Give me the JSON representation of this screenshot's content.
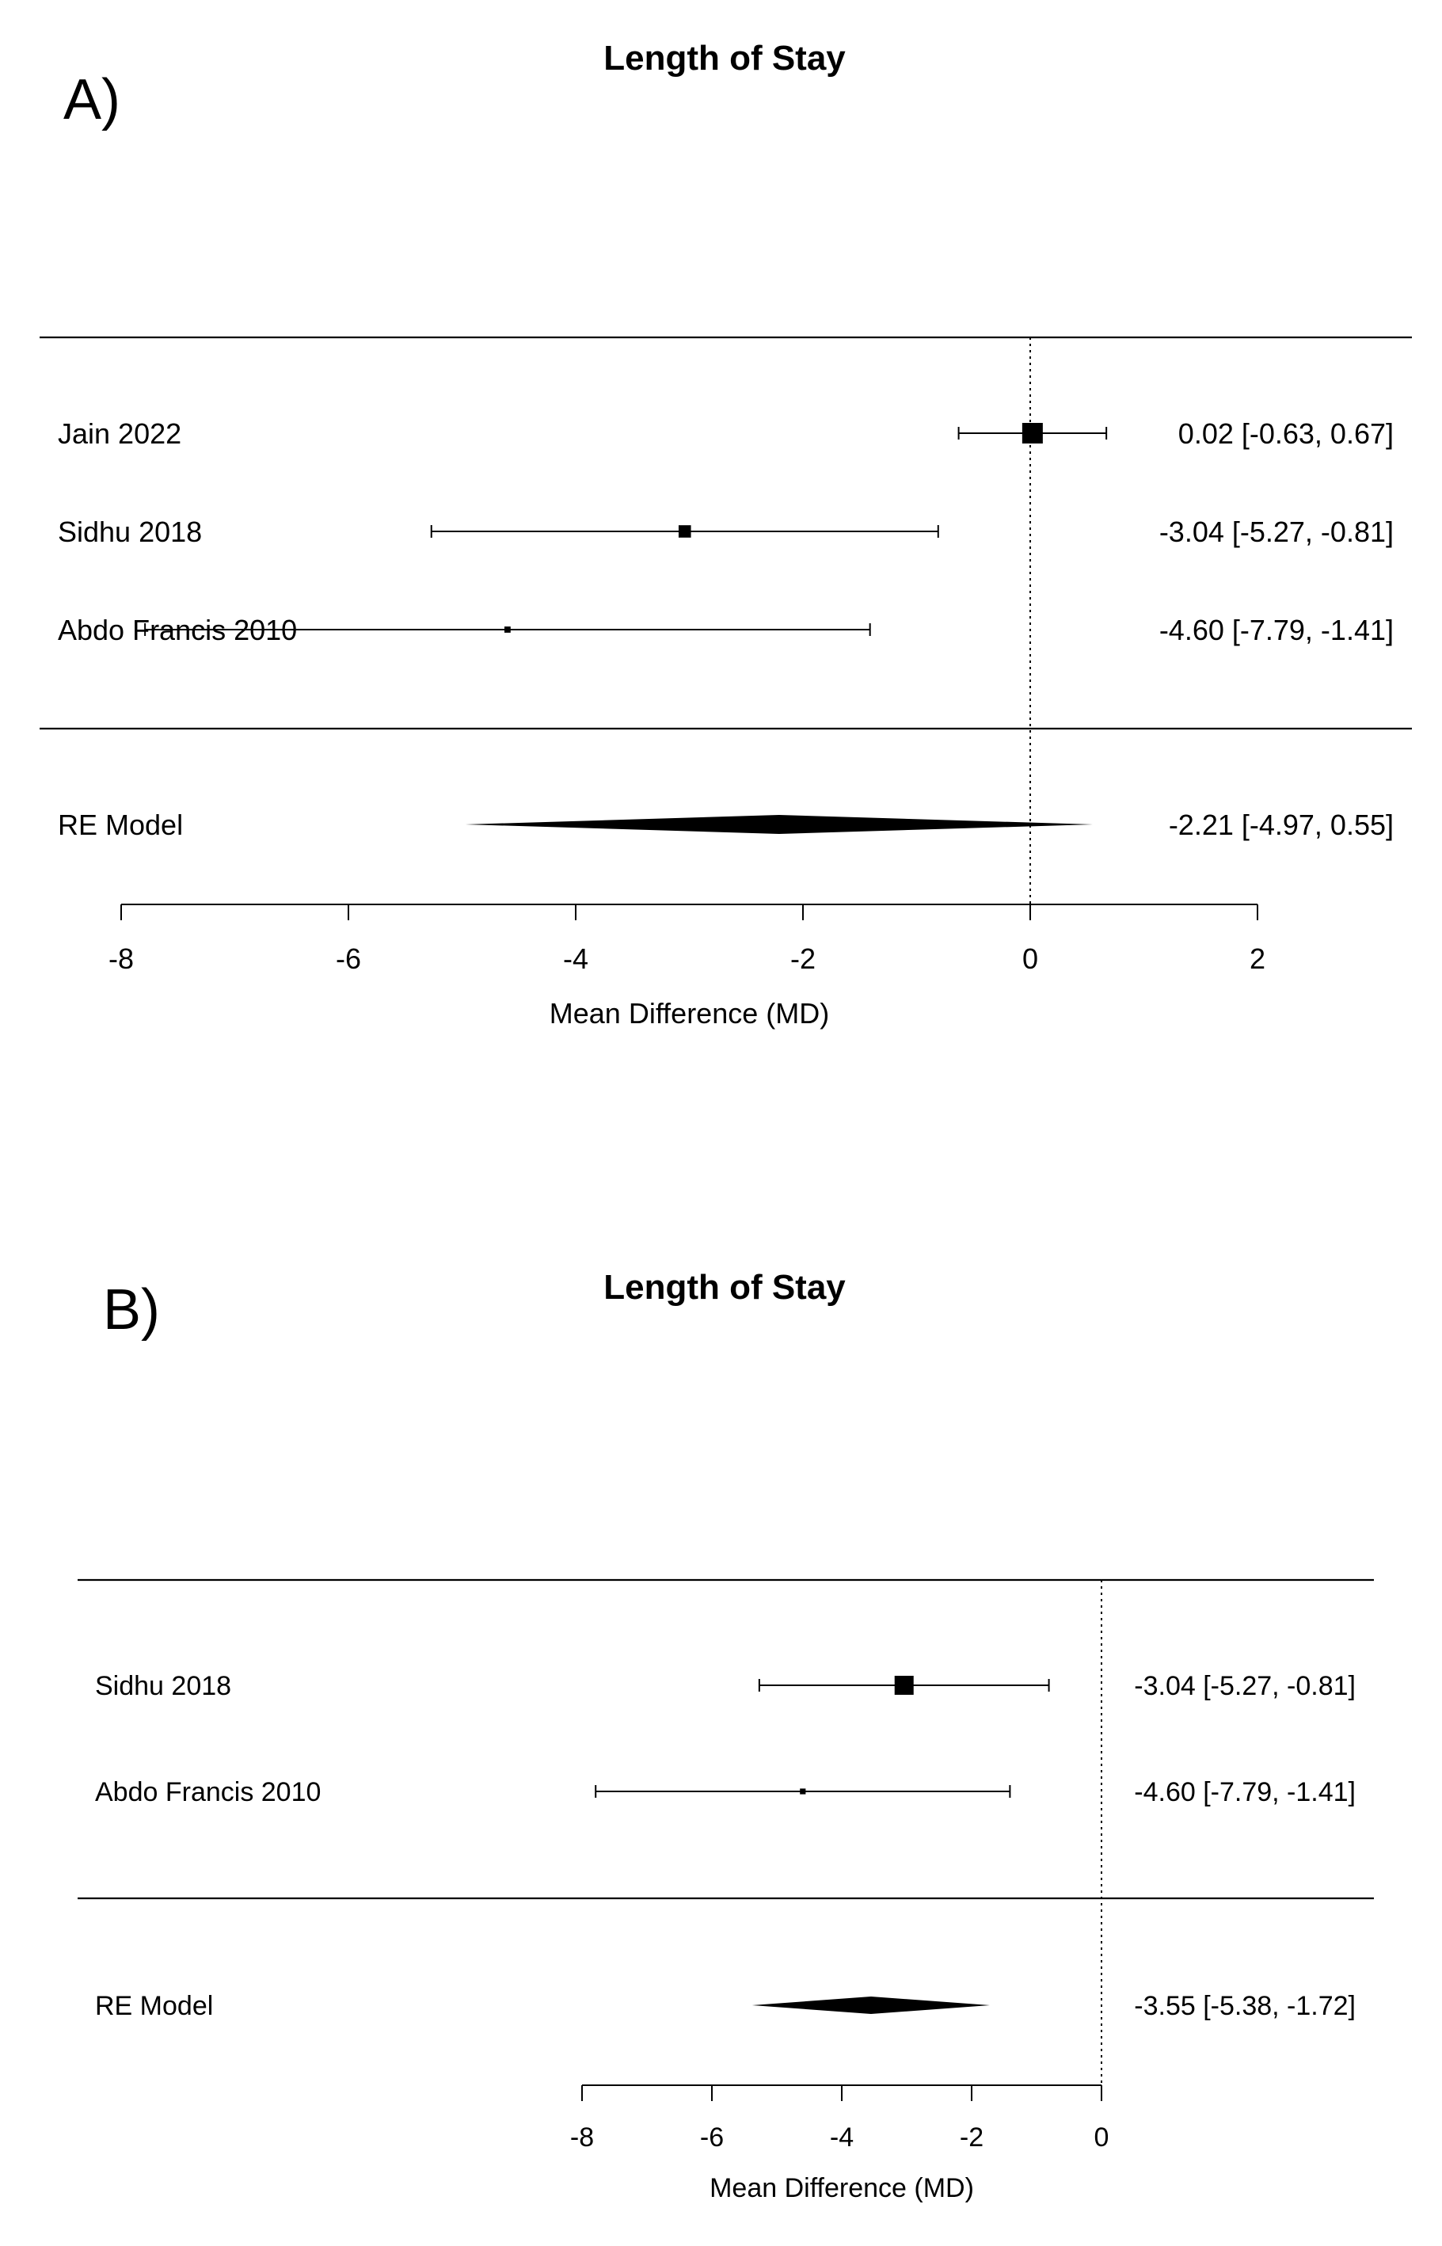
{
  "chart_data": [
    {
      "type": "forest",
      "panel_label": "A)",
      "title": "Length of Stay",
      "xlabel": "Mean Difference (MD)",
      "xticks": [
        -8,
        -6,
        -4,
        -2,
        0,
        2
      ],
      "reference_line": 0,
      "studies": [
        {
          "name": "Jain 2022",
          "estimate": 0.02,
          "lower": -0.63,
          "upper": 0.67,
          "label": "0.02 [-0.63,  0.67]",
          "weight_rel": 1.0
        },
        {
          "name": "Sidhu 2018",
          "estimate": -3.04,
          "lower": -5.27,
          "upper": -0.81,
          "label": "-3.04 [-5.27, -0.81]",
          "weight_rel": 0.6
        },
        {
          "name": "Abdo Francis 2010",
          "estimate": -4.6,
          "lower": -7.79,
          "upper": -1.41,
          "label": "-4.60 [-7.79, -1.41]",
          "weight_rel": 0.3
        }
      ],
      "summary": {
        "name": "RE Model",
        "estimate": -2.21,
        "lower": -4.97,
        "upper": 0.55,
        "label": "-2.21 [-4.97,  0.55]"
      }
    },
    {
      "type": "forest",
      "panel_label": "B)",
      "title": "Length of Stay",
      "xlabel": "Mean Difference (MD)",
      "xticks": [
        -8,
        -6,
        -4,
        -2,
        0
      ],
      "reference_line": 0,
      "studies": [
        {
          "name": "Sidhu 2018",
          "estimate": -3.04,
          "lower": -5.27,
          "upper": -0.81,
          "label": "-3.04 [-5.27, -0.81]",
          "weight_rel": 1.0
        },
        {
          "name": "Abdo Francis 2010",
          "estimate": -4.6,
          "lower": -7.79,
          "upper": -1.41,
          "label": "-4.60 [-7.79, -1.41]",
          "weight_rel": 0.3
        }
      ],
      "summary": {
        "name": "RE Model",
        "estimate": -3.55,
        "lower": -5.38,
        "upper": -1.72,
        "label": "-3.55 [-5.38, -1.72]"
      }
    }
  ]
}
